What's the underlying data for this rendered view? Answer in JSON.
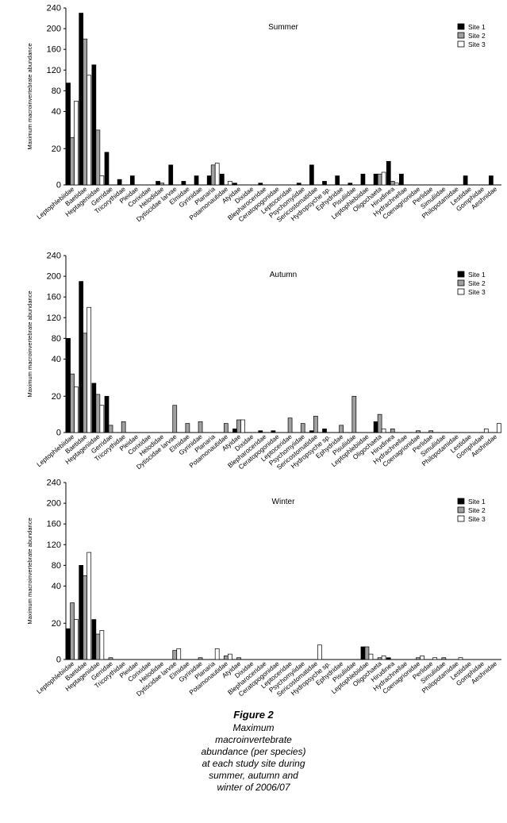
{
  "chart_data": [
    {
      "type": "bar",
      "title": "Summer",
      "ylabel": "Maximum macroinvertebrate abundance",
      "yticks": [
        "0",
        "20",
        "40",
        "80",
        "120",
        "160",
        "200",
        "240"
      ],
      "categories": [
        "Leptophlebiidae",
        "Baetidae",
        "Heptageniidae",
        "Gerridae",
        "Tricorythidae",
        "Pleidae",
        "Corixidae",
        "Helodidae",
        "Dytiscidae larvae",
        "Elmidae",
        "Gyrinidae",
        "Planaria",
        "Potamonautidae",
        "Atyidae",
        "Dixidae",
        "Blepharoceridae",
        "Ceratopogonidae",
        "Leptoceridae",
        "Psychomyiidae",
        "Sericostomatidae",
        "Hydropsyche sp.",
        "Ephydridae",
        "Pisuliidae",
        "Leptophlebiidae",
        "Oligochaeta",
        "Hirudinea",
        "Hydrachnellae",
        "Coenagrionidae",
        "Perlidae",
        "Simuliidae",
        "Philopotamidae",
        "Lestidae",
        "Gomphidae",
        "Aeshnidae"
      ],
      "series": [
        {
          "name": "Site 1",
          "color": "#000000",
          "values": [
            95,
            230,
            130,
            18,
            3,
            5,
            0,
            2,
            11,
            2,
            5,
            5,
            6,
            1,
            0,
            1,
            0,
            0,
            1,
            11,
            2,
            5,
            1,
            6,
            6,
            13,
            6,
            0,
            0,
            0,
            0,
            5,
            0,
            5
          ]
        },
        {
          "name": "Site 2",
          "color": "#a0a0a0",
          "values": [
            26,
            180,
            30,
            0,
            0,
            0,
            0,
            1,
            0,
            0,
            0,
            11,
            0,
            0,
            0,
            0,
            0,
            0,
            0,
            0,
            0,
            0,
            0,
            0,
            6,
            2,
            0,
            0,
            0,
            0,
            0,
            0,
            0,
            0
          ]
        },
        {
          "name": "Site 3",
          "color": "#ffffff",
          "values": [
            60,
            110,
            5,
            0,
            0,
            0,
            0,
            0,
            0,
            0,
            0,
            12,
            2,
            0,
            0,
            0,
            0,
            0,
            0,
            0,
            0,
            0,
            0,
            0,
            7,
            1,
            0,
            0,
            0,
            0,
            0,
            0,
            0,
            0
          ]
        }
      ]
    },
    {
      "type": "bar",
      "title": "Autumn",
      "ylabel": "Maximum macroinvertebrate abundance",
      "yticks": [
        "0",
        "20",
        "40",
        "80",
        "120",
        "160",
        "200",
        "240"
      ],
      "categories": [
        "Leptophlebiidae",
        "Baetidae",
        "Heptageniidae",
        "Gerridae",
        "Tricorythidae",
        "Pleidae",
        "Corixidae",
        "Helodidae",
        "Dytiscidae larvae",
        "Elmidae",
        "Gyrinidae",
        "Planaria",
        "Potamonautidae",
        "Atyidae",
        "Dixidae",
        "Blepharoceridae",
        "Ceratopogonidae",
        "Leptoceridae",
        "Psychomyiidae",
        "Sericostomatidae",
        "Hydropsyche sp.",
        "Ephydridae",
        "Pisuliidae",
        "Leptophlebiidae",
        "Oligochaeta",
        "Hirudinea",
        "Hydrachnellae",
        "Coenagrionidae",
        "Perlidae",
        "Simuliidae",
        "Philopotamidae",
        "Lestidae",
        "Gomphidae",
        "Aeshnidae"
      ],
      "series": [
        {
          "name": "Site 1",
          "color": "#000000",
          "values": [
            80,
            190,
            27,
            20,
            0,
            0,
            0,
            0,
            0,
            0,
            0,
            0,
            0,
            2,
            0,
            1,
            1,
            0,
            0,
            1,
            2,
            0,
            0,
            0,
            6,
            0,
            0,
            0,
            0,
            0,
            0,
            0,
            0,
            0
          ]
        },
        {
          "name": "Site 2",
          "color": "#a0a0a0",
          "values": [
            32,
            90,
            21,
            4,
            6,
            0,
            0,
            0,
            15,
            5,
            6,
            0,
            5,
            7,
            0,
            0,
            0,
            8,
            5,
            9,
            0,
            4,
            20,
            0,
            10,
            2,
            0,
            1,
            1,
            0,
            0,
            0,
            0,
            0
          ]
        },
        {
          "name": "Site 3",
          "color": "#ffffff",
          "values": [
            25,
            140,
            15,
            0,
            0,
            0,
            0,
            0,
            0,
            0,
            0,
            0,
            0,
            7,
            0,
            0,
            0,
            0,
            0,
            0,
            0,
            0,
            0,
            0,
            2,
            0,
            0,
            0,
            0,
            0,
            0,
            0,
            2,
            5
          ]
        }
      ]
    },
    {
      "type": "bar",
      "title": "Winter",
      "ylabel": "Maximum macroinvertebrate abundance",
      "yticks": [
        "0",
        "20",
        "40",
        "80",
        "120",
        "160",
        "200",
        "240"
      ],
      "categories": [
        "Leptophlebiidae",
        "Baetidae",
        "Heptageniidae",
        "Gerridae",
        "Tricorythidae",
        "Pleidae",
        "Corixidae",
        "Helodidae",
        "Dytiscidae larvae",
        "Elmidae",
        "Gyrinidae",
        "Planaria",
        "Potamonautidae",
        "Atyidae",
        "Dixidae",
        "Blepharoceridae",
        "Ceratopogonidae",
        "Leptoceridae",
        "Psychomyiidae",
        "Sericostomatidae",
        "Hydropsyche sp.",
        "Ephydridae",
        "Pisuliidae",
        "Leptophlebiidae",
        "Oligochaeta",
        "Hirudinea",
        "Hydrachnellae",
        "Coenagrionidae",
        "Perlidae",
        "Simuliidae",
        "Philopotamidae",
        "Lestidae",
        "Gomphidae",
        "Aeshnidae"
      ],
      "series": [
        {
          "name": "Site 1",
          "color": "#000000",
          "values": [
            17,
            80,
            22,
            0,
            0,
            0,
            0,
            0,
            0,
            0,
            0,
            0,
            0,
            0,
            0,
            0,
            0,
            0,
            0,
            0,
            0,
            0,
            0,
            7,
            0,
            1,
            0,
            0,
            0,
            0,
            0,
            0,
            0,
            0
          ]
        },
        {
          "name": "Site 2",
          "color": "#a0a0a0",
          "values": [
            31,
            60,
            14,
            1,
            0,
            0,
            0,
            0,
            5,
            0,
            1,
            0,
            2,
            1,
            0,
            0,
            0,
            0,
            0,
            0,
            0,
            0,
            0,
            7,
            1,
            0,
            0,
            1,
            0,
            1,
            0,
            0,
            0,
            0
          ]
        },
        {
          "name": "Site 3",
          "color": "#ffffff",
          "values": [
            22,
            105,
            16,
            0,
            0,
            0,
            0,
            0,
            6,
            0,
            0,
            6,
            3,
            0,
            0,
            0,
            0,
            0,
            0,
            8,
            0,
            0,
            0,
            3,
            2,
            0,
            0,
            2,
            1,
            0,
            1,
            0,
            0,
            0
          ]
        }
      ]
    }
  ],
  "caption": {
    "figure_label": "Figure 2",
    "text": "Maximum macroinvertebrate abundance (per species) at each study site during summer, autumn and winter of 2006/07"
  }
}
